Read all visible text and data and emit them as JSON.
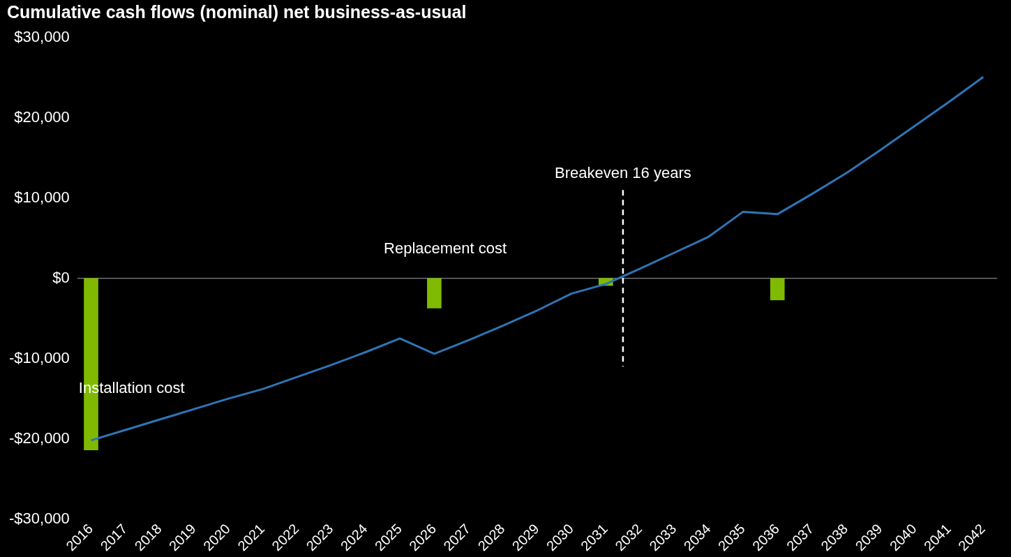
{
  "chart_data": {
    "type": "line",
    "title": "Cumulative cash flows (nominal) net business-as-usual",
    "x": [
      2016,
      2017,
      2018,
      2019,
      2020,
      2021,
      2022,
      2023,
      2024,
      2025,
      2026,
      2027,
      2028,
      2029,
      2030,
      2031,
      2032,
      2033,
      2034,
      2035,
      2036,
      2037,
      2038,
      2039,
      2040,
      2041,
      2042
    ],
    "series": [
      {
        "type": "bar",
        "color": "#7fba00",
        "x": [
          2016,
          2026,
          2031,
          2036
        ],
        "values": [
          -21400,
          -3700,
          -900,
          -2700
        ]
      },
      {
        "color": "#2e75b6",
        "values": [
          -20200,
          -18900,
          -17600,
          -16300,
          -15000,
          -13800,
          -12300,
          -10800,
          -9200,
          -7500,
          -9400,
          -7700,
          -5900,
          -4000,
          -1900,
          -700,
          1200,
          3200,
          5200,
          8300,
          8000,
          10500,
          13100,
          16000,
          19000,
          22000,
          25100
        ]
      }
    ],
    "xlim": [
      2015.6,
      2042.4
    ],
    "xticks": [
      2016,
      2017,
      2018,
      2019,
      2020,
      2021,
      2022,
      2023,
      2024,
      2025,
      2026,
      2027,
      2028,
      2029,
      2030,
      2031,
      2032,
      2033,
      2034,
      2035,
      2036,
      2037,
      2038,
      2039,
      2040,
      2041,
      2042
    ],
    "ylim": [
      -30000,
      30000
    ],
    "yticks": [
      {
        "value": -30000,
        "label": "-$30,000"
      },
      {
        "value": -20000,
        "label": "-$20,000"
      },
      {
        "value": -10000,
        "label": "-$10,000"
      },
      {
        "value": 0,
        "label": "$0"
      },
      {
        "value": 10000,
        "label": "$10,000"
      },
      {
        "value": 20000,
        "label": "$20,000"
      },
      {
        "value": 30000,
        "label": "$30,000"
      }
    ],
    "ref_lines": [
      {
        "axis": "x",
        "value": 2031.5,
        "label": "Breakeven 16 years",
        "color": "#ffffff",
        "line_style": "dashed"
      }
    ],
    "annotations": [
      "Installation cost",
      "Replacement cost"
    ],
    "legend": false,
    "marker": "none",
    "line_style": "solid"
  }
}
